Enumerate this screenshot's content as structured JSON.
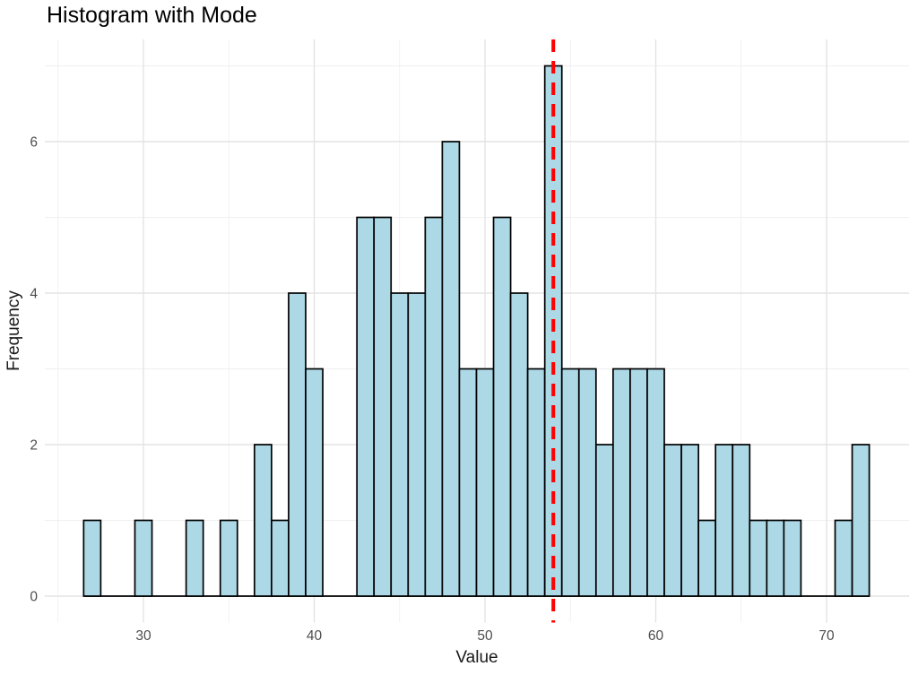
{
  "title": "Histogram with Mode",
  "chart_data": {
    "type": "bar",
    "subtype": "histogram",
    "title": "Histogram with Mode",
    "xlabel": "Value",
    "ylabel": "Frequency",
    "bin_width": 1,
    "bin_centers": [
      27,
      28,
      29,
      30,
      31,
      32,
      33,
      34,
      35,
      36,
      37,
      38,
      39,
      40,
      41,
      42,
      43,
      44,
      45,
      46,
      47,
      48,
      49,
      50,
      51,
      52,
      53,
      54,
      55,
      56,
      57,
      58,
      59,
      60,
      61,
      62,
      63,
      64,
      65,
      66,
      67,
      68,
      69,
      70,
      71,
      72
    ],
    "counts": [
      1,
      0,
      0,
      1,
      0,
      0,
      1,
      0,
      1,
      0,
      2,
      1,
      4,
      3,
      0,
      0,
      5,
      5,
      4,
      4,
      5,
      6,
      3,
      3,
      5,
      4,
      3,
      7,
      3,
      3,
      2,
      3,
      3,
      3,
      2,
      2,
      1,
      2,
      2,
      1,
      1,
      1,
      0,
      0,
      1,
      2
    ],
    "mode_line_x": 54,
    "x_ticks": [
      30,
      40,
      50,
      60,
      70
    ],
    "x_minor_gridlines": [
      25,
      35,
      45,
      55,
      65
    ],
    "y_ticks": [
      0,
      2,
      4,
      6
    ],
    "y_minor_gridlines": [
      1,
      3,
      5,
      7
    ],
    "xlim": [
      24.2,
      74.8
    ],
    "ylim": [
      -0.35,
      7.35
    ],
    "grid": true,
    "legend_position": "none",
    "colors": {
      "bar_fill": "#ADD8E6",
      "bar_stroke": "#000000",
      "mode_line": "#FF0000",
      "grid_major": "#E3E3E3",
      "grid_minor": "#F0F0F0",
      "axis_text": "#4D4D4D",
      "axis_title": "#1A1A1A",
      "title_color": "#000000",
      "background": "#FFFFFF"
    }
  }
}
